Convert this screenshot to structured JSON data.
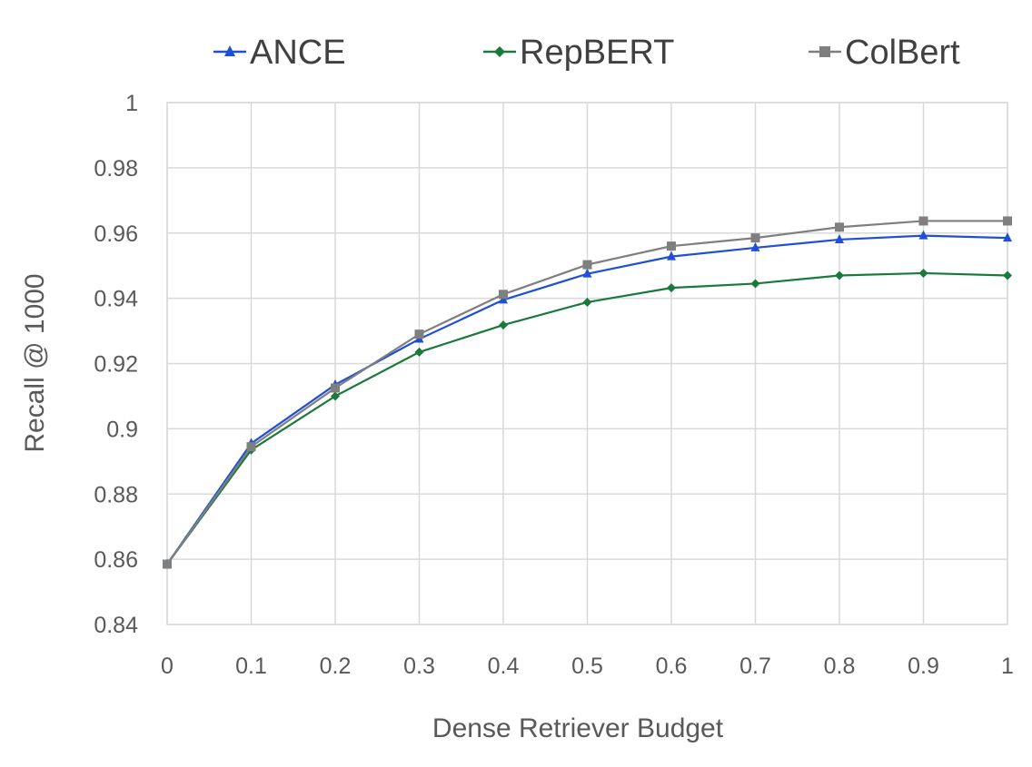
{
  "chart_data": {
    "type": "line",
    "title": "",
    "xlabel": "Dense Retriever Budget",
    "ylabel": "Recall @ 1000",
    "x": [
      0,
      0.1,
      0.2,
      0.3,
      0.4,
      0.5,
      0.6,
      0.7,
      0.8,
      0.9,
      1
    ],
    "x_tick_labels": [
      "0",
      "0.1",
      "0.2",
      "0.3",
      "0.4",
      "0.5",
      "0.6",
      "0.7",
      "0.8",
      "0.9",
      "1"
    ],
    "y_tick_labels": [
      "0.84",
      "0.86",
      "0.88",
      "0.9",
      "0.92",
      "0.94",
      "0.96",
      "0.98",
      "1"
    ],
    "xlim": [
      0,
      1
    ],
    "ylim": [
      0.84,
      1
    ],
    "grid": true,
    "legend_position": "top",
    "series": [
      {
        "name": "ANCE",
        "color": "#1f4fd8",
        "marker": "triangle",
        "values": [
          0.8585,
          0.8955,
          0.9135,
          0.9275,
          0.9395,
          0.9475,
          0.9528,
          0.9555,
          0.958,
          0.9592,
          0.9585
        ]
      },
      {
        "name": "RepBERT",
        "color": "#1a7a3c",
        "marker": "diamond",
        "values": [
          0.8585,
          0.8935,
          0.91,
          0.9235,
          0.9318,
          0.9388,
          0.9432,
          0.9445,
          0.947,
          0.9477,
          0.947
        ]
      },
      {
        "name": "ColBert",
        "color": "#7f7f7f",
        "marker": "square",
        "values": [
          0.8585,
          0.8945,
          0.9125,
          0.929,
          0.9412,
          0.9503,
          0.956,
          0.9585,
          0.9618,
          0.9637,
          0.9637
        ]
      }
    ]
  }
}
